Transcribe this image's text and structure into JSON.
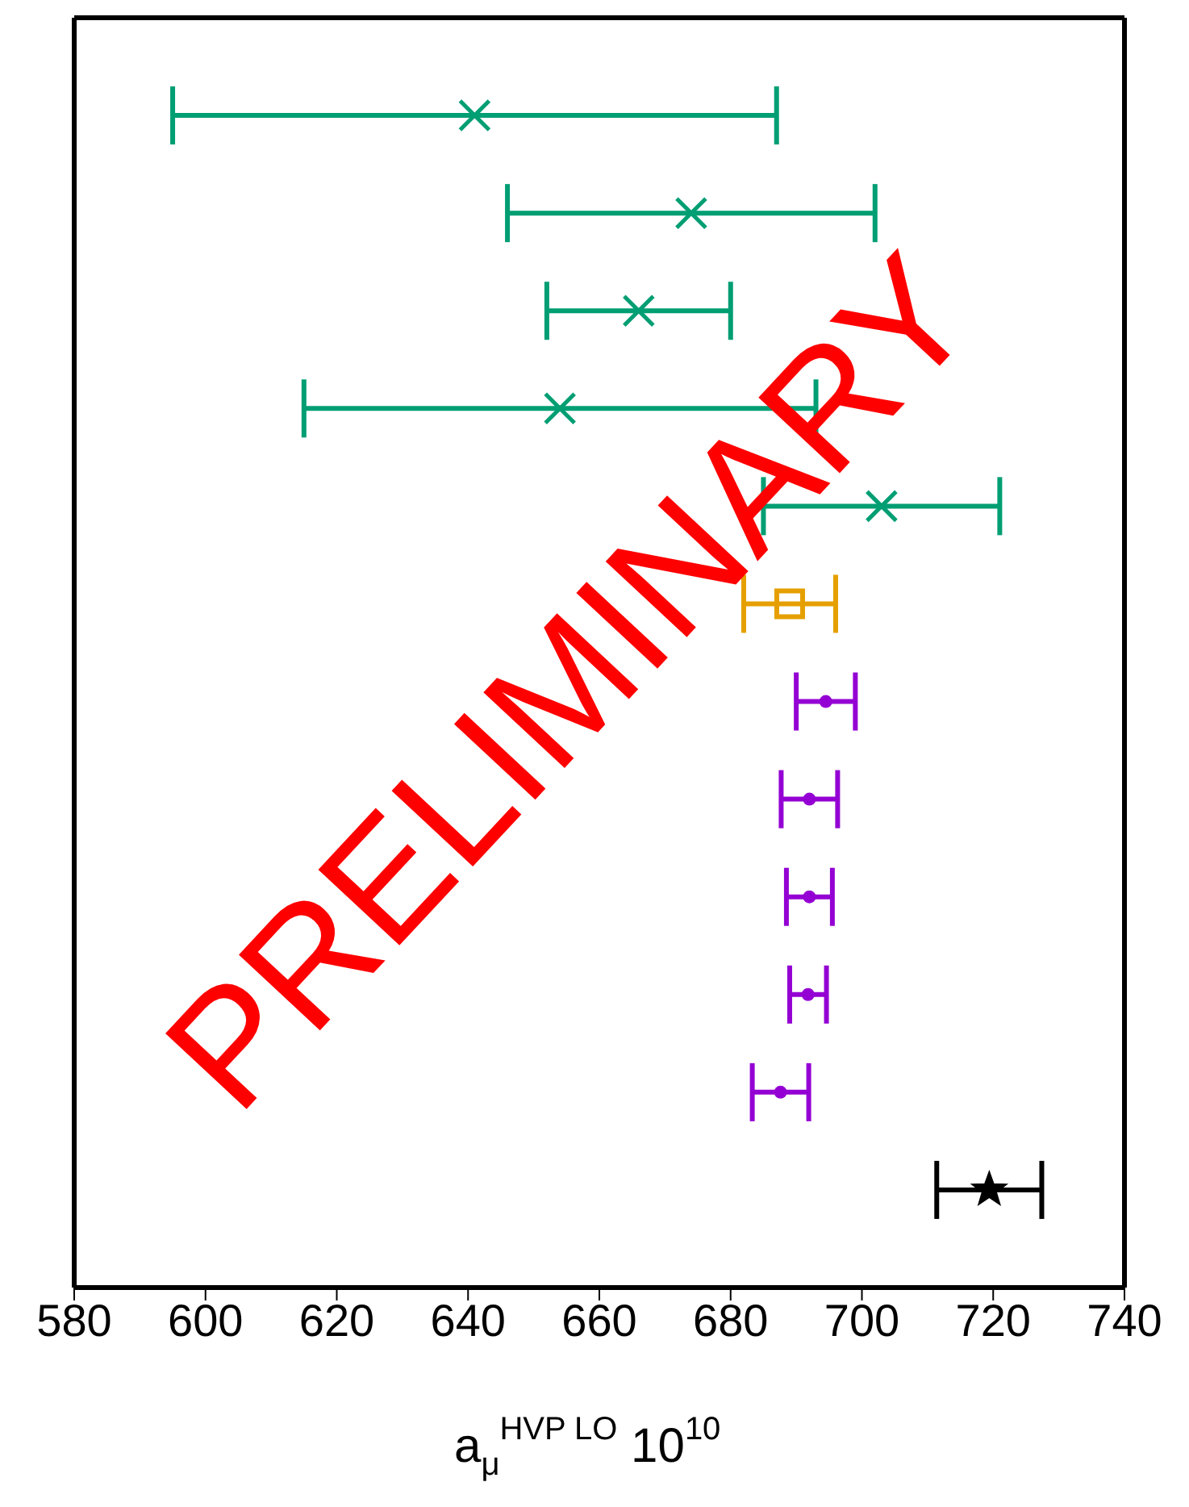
{
  "chart_data": {
    "type": "scatter",
    "orientation": "horizontal",
    "xlabel": "a$_{μ}$$^{HVP LO}$ 10$^{10}$",
    "categories": [
      null,
      null,
      null,
      null,
      null,
      null,
      null,
      null,
      null,
      null,
      null,
      null
    ],
    "series": [
      {
        "color": "#009e73",
        "marker": "cross",
        "values": [
          641,
          674,
          666,
          654,
          703,
          null,
          null,
          null,
          null,
          null,
          null,
          null
        ],
        "errors": [
          46,
          28,
          14,
          39,
          18,
          null,
          null,
          null,
          null,
          null,
          null,
          null
        ]
      },
      {
        "color": "#e69f00",
        "marker": "square",
        "values": [
          null,
          null,
          null,
          null,
          null,
          689,
          null,
          null,
          null,
          null,
          null,
          null
        ],
        "errors": [
          null,
          null,
          null,
          null,
          null,
          7,
          null,
          null,
          null,
          null,
          null,
          null
        ]
      },
      {
        "color": "#9400d3",
        "marker": "circle",
        "values": [
          null,
          null,
          null,
          null,
          null,
          null,
          694.5,
          692,
          692,
          691.8,
          687.6,
          null
        ],
        "errors": [
          null,
          null,
          null,
          null,
          null,
          null,
          4.5,
          4.3,
          3.5,
          2.8,
          4.3,
          null
        ]
      },
      {
        "color": "#000000",
        "marker": "star",
        "values": [
          null,
          null,
          null,
          null,
          null,
          null,
          null,
          null,
          null,
          null,
          null,
          719.4
        ],
        "errors": [
          null,
          null,
          null,
          null,
          null,
          null,
          null,
          null,
          null,
          null,
          null,
          8
        ]
      }
    ],
    "xlim": [
      580,
      740
    ],
    "xticks": [
      580,
      600,
      620,
      640,
      660,
      680,
      700,
      720,
      740
    ],
    "tick_labels": "x",
    "annotations": [
      "PRELIMINARY"
    ]
  }
}
